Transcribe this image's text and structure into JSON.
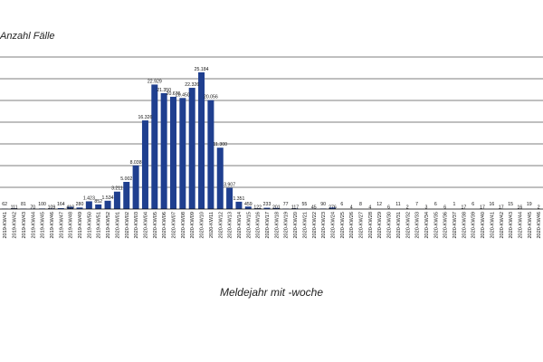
{
  "chart_data": {
    "type": "bar",
    "ylabel": "Anzahl Fälle",
    "xlabel": "Meldejahr mit -woche",
    "ylim": [
      0,
      28000
    ],
    "grid": true,
    "bar_color": "#1f3f8f",
    "grid_color": "#000000",
    "categories": [
      "2019-KW41",
      "2019-KW42",
      "2019-KW43",
      "2019-KW44",
      "2019-KW45",
      "2019-KW46",
      "2019-KW47",
      "2019-KW48",
      "2019-KW49",
      "2019-KW50",
      "2019-KW51",
      "2019-KW52",
      "2020-KW01",
      "2020-KW02",
      "2020-KW03",
      "2020-KW04",
      "2020-KW05",
      "2020-KW06",
      "2020-KW07",
      "2020-KW08",
      "2020-KW09",
      "2020-KW10",
      "2020-KW11",
      "2020-KW12",
      "2020-KW13",
      "2020-KW14",
      "2020-KW15",
      "2020-KW16",
      "2020-KW17",
      "2020-KW18",
      "2020-KW19",
      "2020-KW20",
      "2020-KW21",
      "2020-KW22",
      "2020-KW23",
      "2020-KW24",
      "2020-KW25",
      "2020-KW26",
      "2020-KW27",
      "2020-KW28",
      "2020-KW29",
      "2020-KW30",
      "2020-KW31",
      "2020-KW32",
      "2020-KW33",
      "2020-KW34",
      "2020-KW35",
      "2020-KW36",
      "2020-KW37",
      "2020-KW38",
      "2020-KW39",
      "2020-KW40",
      "2020-KW41",
      "2020-KW42",
      "2020-KW43",
      "2020-KW44",
      "2020-KW45",
      "2020-KW46",
      "2020-KW47"
    ],
    "values": [
      62,
      111,
      81,
      70,
      100,
      109,
      164,
      410,
      280,
      1423,
      852,
      1534,
      3211,
      5002,
      8038,
      16326,
      22929,
      21350,
      20676,
      20450,
      22326,
      25184,
      20056,
      11300,
      3907,
      1351,
      459,
      122,
      233,
      201,
      77,
      117,
      55,
      45,
      90,
      276,
      6,
      4,
      8,
      4,
      12,
      6,
      11,
      2,
      7,
      3,
      6,
      6,
      1,
      17,
      6,
      17,
      16,
      17,
      15,
      16,
      19,
      2,
      8
    ],
    "labels": [
      "62",
      "111",
      "81",
      "70",
      "100",
      "109",
      "164",
      "410",
      "280",
      "1.423",
      "852",
      "1.534",
      "3.211",
      "5.002",
      "8.038",
      "16.326",
      "22.929",
      "21.350",
      "20.676",
      "20.450",
      "22.326",
      "25.184",
      "20.056",
      "11.300",
      "3.907",
      "1.351",
      "459",
      "122",
      "233",
      "201",
      "77",
      "117",
      "55",
      "45",
      "90",
      "276",
      "6",
      "4",
      "8",
      "4",
      "12",
      "6",
      "11",
      "2",
      "7",
      "3",
      "6",
      "6",
      "1",
      "17",
      "6",
      "17",
      "16",
      "17",
      "15",
      "16",
      "19",
      "2",
      "8"
    ]
  }
}
